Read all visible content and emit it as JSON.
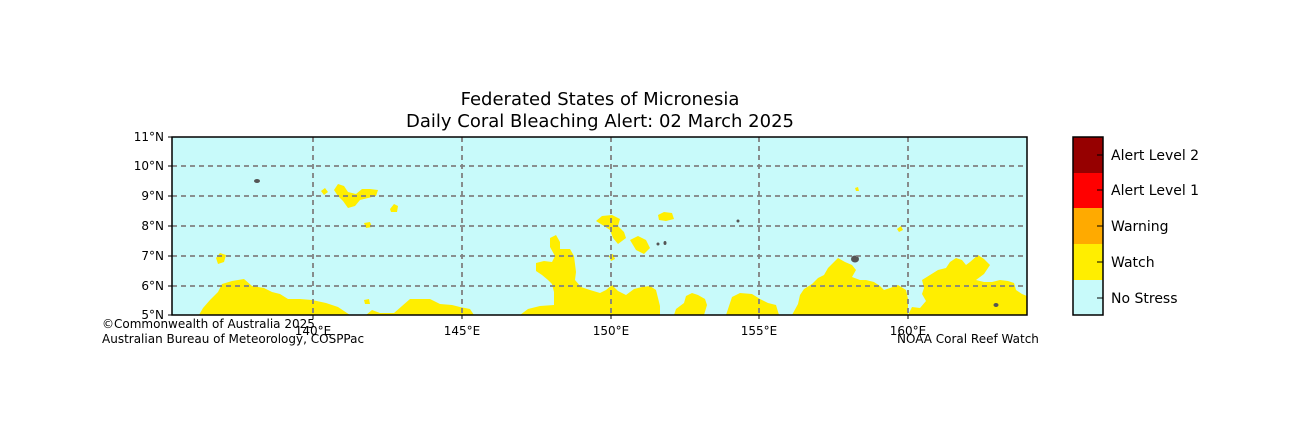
{
  "title_line1": "Federated States of Micronesia",
  "title_line2": "Daily Coral Bleaching Alert: 02 March 2025",
  "lat_ticks": [
    "11°N",
    "10°N",
    "9°N",
    "8°N",
    "7°N",
    "6°N",
    "5°N"
  ],
  "lon_ticks": [
    "140°E",
    "145°E",
    "150°E",
    "155°E",
    "160°E"
  ],
  "credit_left_1": "©Commonwealth of Australia 2025",
  "credit_left_2": "Australian Bureau of Meteorology, COSPPac",
  "credit_right": "NOAA Coral Reef Watch",
  "legend": [
    {
      "label": "Alert Level 2",
      "color": "#960000"
    },
    {
      "label": "Alert Level 1",
      "color": "#ff0000"
    },
    {
      "label": "Warning",
      "color": "#ffaa00"
    },
    {
      "label": "Watch",
      "color": "#ffee00"
    },
    {
      "label": "No Stress",
      "color": "#c8fafa"
    }
  ],
  "colors": {
    "ocean": "#c8fafa",
    "watch": "#ffee00",
    "land": "#555555",
    "grid": "#808080"
  }
}
